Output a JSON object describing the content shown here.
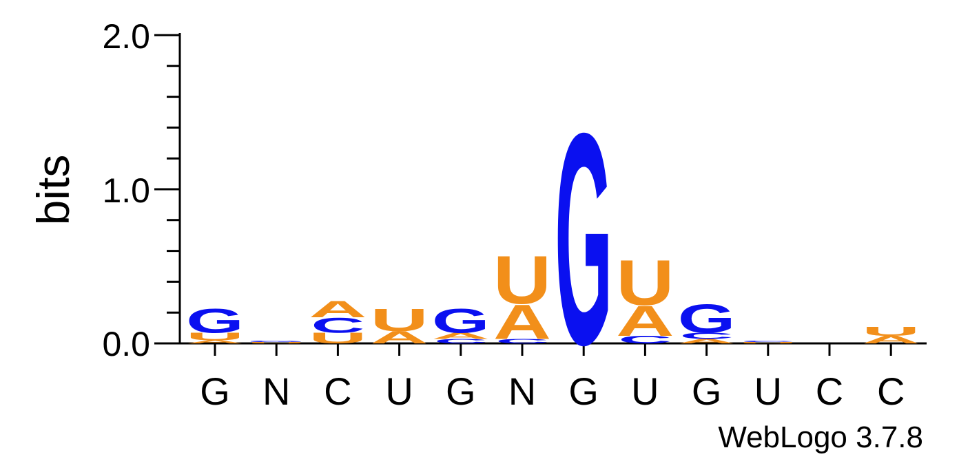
{
  "chart_data": {
    "type": "sequence-logo",
    "ylabel": "bits",
    "ylim": [
      0,
      2.0
    ],
    "yticks": [
      "0.0",
      "1.0",
      "2.0"
    ],
    "x_labels": [
      "G",
      "N",
      "C",
      "U",
      "G",
      "N",
      "G",
      "U",
      "G",
      "U",
      "C",
      "C"
    ],
    "footer": "WebLogo 3.7.8",
    "colors": {
      "A": "#f28f1a",
      "U": "#f28f1a",
      "G": "#0a10f0",
      "C": "#0a10f0"
    },
    "positions": [
      {
        "stack": [
          [
            "A",
            0.02
          ],
          [
            "U",
            0.05
          ],
          [
            "G",
            0.16
          ]
        ]
      },
      {
        "stack": [
          [
            "U",
            0.01
          ],
          [
            "G",
            0.01
          ]
        ]
      },
      {
        "stack": [
          [
            "U",
            0.07
          ],
          [
            "C",
            0.1
          ],
          [
            "A",
            0.11
          ]
        ]
      },
      {
        "stack": [
          [
            "A",
            0.08
          ],
          [
            "U",
            0.15
          ]
        ]
      },
      {
        "stack": [
          [
            "C",
            0.03
          ],
          [
            "A",
            0.04
          ],
          [
            "G",
            0.16
          ]
        ]
      },
      {
        "stack": [
          [
            "C",
            0.03
          ],
          [
            "A",
            0.23
          ],
          [
            "U",
            0.32
          ]
        ]
      },
      {
        "stack": [
          [
            "G",
            1.41
          ]
        ]
      },
      {
        "stack": [
          [
            "C",
            0.05
          ],
          [
            "A",
            0.2
          ],
          [
            "U",
            0.3
          ]
        ]
      },
      {
        "stack": [
          [
            "A",
            0.03
          ],
          [
            "C",
            0.04
          ],
          [
            "G",
            0.19
          ]
        ]
      },
      {
        "stack": [
          [
            "U",
            0.01
          ],
          [
            "C",
            0.01
          ]
        ]
      },
      {
        "stack": []
      },
      {
        "stack": [
          [
            "A",
            0.05
          ],
          [
            "U",
            0.06
          ]
        ]
      }
    ]
  }
}
